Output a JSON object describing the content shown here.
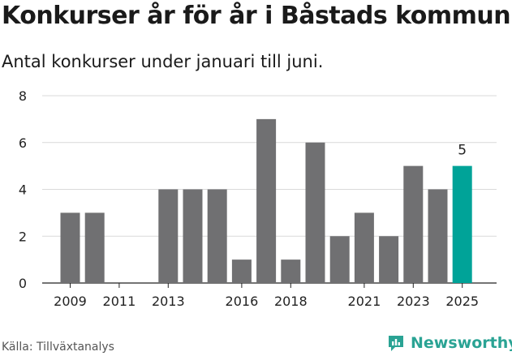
{
  "title": "Konkurser år för år i Båstads kommun",
  "subtitle": "Antal konkurser under januari till juni.",
  "source": "Källa: Tillväxtanalys",
  "brand": "Newsworthy",
  "colors": {
    "bar": "#707072",
    "highlight": "#00a398",
    "grid": "#d9d9d9",
    "axis": "#222222"
  },
  "chart_data": {
    "type": "bar",
    "x": [
      2009,
      2010,
      2011,
      2012,
      2013,
      2014,
      2015,
      2016,
      2017,
      2018,
      2019,
      2020,
      2021,
      2022,
      2023,
      2024,
      2025
    ],
    "values": [
      3,
      3,
      0,
      0,
      4,
      4,
      4,
      1,
      7,
      1,
      6,
      2,
      3,
      2,
      5,
      4,
      5
    ],
    "xtick_labels": [
      "2009",
      "2011",
      "2013",
      "2016",
      "2018",
      "2021",
      "2023",
      "2025"
    ],
    "ylim": [
      0,
      8
    ],
    "yticks": [
      0,
      2,
      4,
      6,
      8
    ],
    "highlight": {
      "x": 2025,
      "label": "5"
    },
    "grid": true
  }
}
